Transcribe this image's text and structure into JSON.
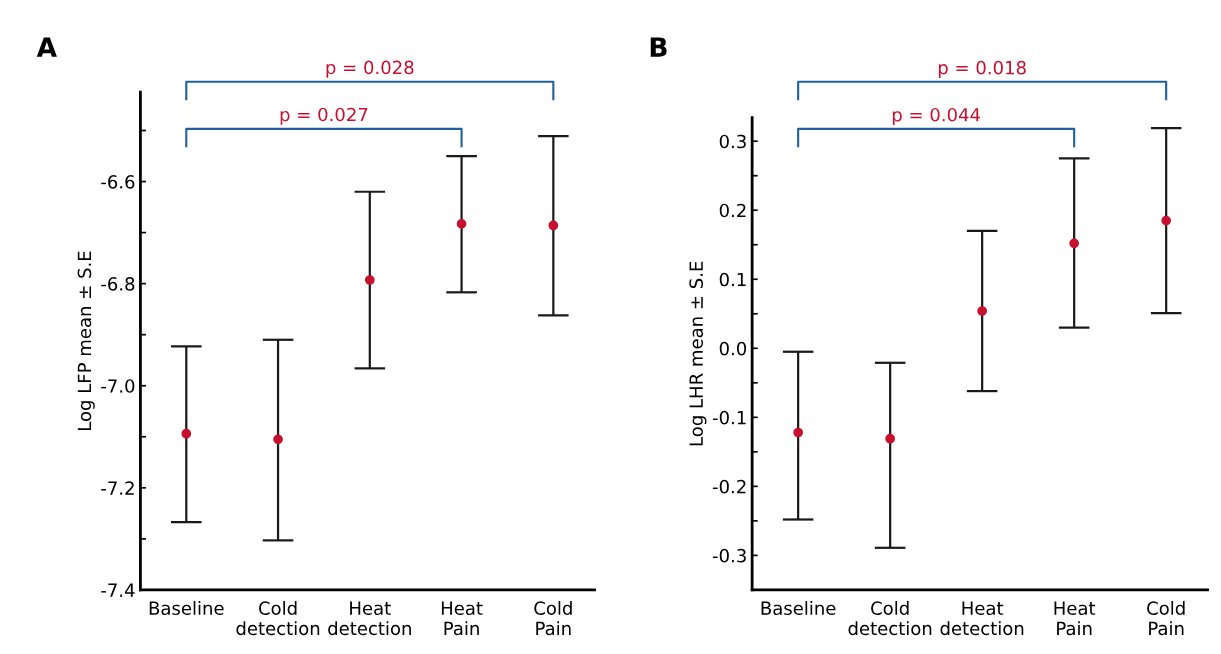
{
  "chart_data": [
    {
      "type": "scatter",
      "title": "A",
      "ylabel": "Log LFP mean ± S.E",
      "categories": [
        "Baseline",
        "Cold\ndetection",
        "Heat\ndetection",
        "Heat\nPain",
        "Cold\nPain"
      ],
      "series": [
        {
          "color": "#c8102e",
          "values": [
            -7.094,
            -7.105,
            -6.793,
            -6.683,
            -6.686
          ],
          "errors": [
            [
              -7.267,
              -6.923
            ],
            [
              -7.303,
              -6.91
            ],
            [
              -6.966,
              -6.62
            ],
            [
              -6.817,
              -6.55
            ],
            [
              -6.862,
              -6.511
            ]
          ]
        }
      ],
      "marker": "circle",
      "ylim": [
        -7.4,
        -6.425
      ],
      "yticks": [
        -7.4,
        {
          "value": -7.3,
          "label": null
        },
        -7.2,
        {
          "value": -7.1,
          "label": null
        },
        {
          "value": -7.0,
          "label": "-7.0"
        },
        {
          "value": -6.9,
          "label": null
        },
        -6.8,
        {
          "value": -6.7,
          "label": null
        },
        -6.6,
        {
          "value": -6.5,
          "label": null
        }
      ],
      "annotations": [
        "p = 0.028",
        "p = 0.027"
      ],
      "grid": false,
      "legend": false
    },
    {
      "type": "scatter",
      "title": "B",
      "ylabel": "Log LHR mean ± S.E",
      "categories": [
        "Baseline",
        "Cold\ndetection",
        "Heat\ndetection",
        "Heat\nPain",
        "Cold\nPain"
      ],
      "series": [
        {
          "color": "#c8102e",
          "values": [
            -0.122,
            -0.131,
            0.054,
            0.152,
            0.185
          ],
          "errors": [
            [
              -0.248,
              -0.005
            ],
            [
              -0.289,
              -0.021
            ],
            [
              -0.062,
              0.17
            ],
            [
              0.03,
              0.275
            ],
            [
              0.051,
              0.319
            ]
          ]
        }
      ],
      "marker": "circle",
      "ylim": [
        -0.35,
        0.334
      ],
      "yticks": [
        {
          "value": -0.35,
          "label": null
        },
        -0.3,
        {
          "value": -0.25,
          "label": null
        },
        -0.2,
        {
          "value": -0.15,
          "label": null
        },
        -0.1,
        {
          "value": -0.05,
          "label": null
        },
        {
          "value": 0.0,
          "label": "0.0"
        },
        {
          "value": 0.05,
          "label": null
        },
        0.1,
        {
          "value": 0.15,
          "label": null
        },
        0.2,
        {
          "value": 0.25,
          "label": null
        },
        0.3
      ],
      "annotations": [
        "p = 0.018",
        "p = 0.044"
      ],
      "grid": false,
      "legend": false
    }
  ]
}
